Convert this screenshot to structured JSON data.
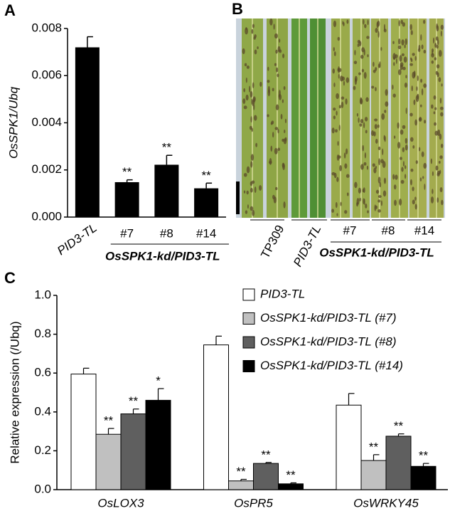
{
  "panel_letters": [
    "A",
    "B",
    "C"
  ],
  "chart_data": [
    {
      "type": "bar",
      "ylabel": "OsSPK1/Ubq",
      "categories": [
        "PID3-TL",
        "#7",
        "#8",
        "#14"
      ],
      "group_label": "OsSPK1-kd/PID3-TL",
      "values": [
        0.0072,
        0.00148,
        0.00222,
        0.00122
      ],
      "errors": [
        0.00045,
        0.0001,
        0.0004,
        0.00022
      ],
      "annotations": [
        null,
        "**",
        "**",
        "**"
      ],
      "color": "#000000",
      "ylim": [
        0,
        0.008
      ],
      "yticks": [
        {
          "value": 0,
          "label": "0.000"
        },
        0.002,
        0.004,
        0.006,
        0.008
      ]
    },
    {
      "type": "grouped-bar",
      "ylabel": "Relative expression (/Ubq)",
      "categories": [
        "OsLOX3",
        "OsPR5",
        "OsWRKY45"
      ],
      "series": [
        {
          "name": "PID3-TL",
          "color": "#ffffff",
          "values": [
            0.595,
            0.745,
            0.435
          ],
          "errors": [
            0.03,
            0.045,
            0.06
          ]
        },
        {
          "name": "OsSPK1-kd/PID3-TL (#7)",
          "color": "#c0c0c0",
          "values": [
            0.285,
            0.045,
            0.15
          ],
          "errors": [
            0.03,
            0.008,
            0.03
          ],
          "annotations": [
            "**",
            "**",
            "**"
          ]
        },
        {
          "name": "OsSPK1-kd/PID3-TL (#8)",
          "color": "#5f5f5f",
          "values": [
            0.39,
            0.135,
            0.275
          ],
          "errors": [
            0.025,
            0.005,
            0.012
          ],
          "annotations": [
            "**",
            "**",
            "**"
          ]
        },
        {
          "name": "OsSPK1-kd/PID3-TL (#14)",
          "color": "#000000",
          "values": [
            0.46,
            0.03,
            0.12
          ],
          "errors": [
            0.06,
            0.005,
            0.015
          ],
          "annotations": [
            "*",
            "**",
            "**"
          ]
        }
      ],
      "ylim": [
        0,
        1.0
      ],
      "yticks": [
        {
          "value": 0,
          "label": "0.0"
        },
        0.2,
        0.4,
        0.6,
        0.8,
        {
          "value": 1.0,
          "label": "1.0"
        }
      ]
    }
  ],
  "photo": {
    "labels": [
      "TP309",
      "PID3-TL",
      "#7",
      "#8",
      "#14"
    ],
    "group_label": "OsSPK1-kd/PID3-TL"
  }
}
